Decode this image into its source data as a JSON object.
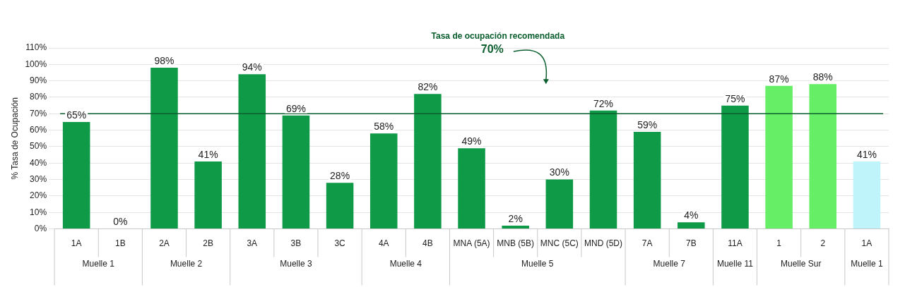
{
  "chart_data": {
    "type": "bar",
    "ylabel": "% Tasa de Ocupación",
    "categories": [
      "1A",
      "1B",
      "2A",
      "2B",
      "3A",
      "3B",
      "3C",
      "4A",
      "4B",
      "MNA (5A)",
      "MNB (5B)",
      "MNC (5C)",
      "MND (5D)",
      "7A",
      "7B",
      "11A",
      "1",
      "2",
      "1A"
    ],
    "values": [
      65,
      0,
      98,
      41,
      94,
      69,
      28,
      58,
      82,
      49,
      2,
      30,
      72,
      59,
      4,
      75,
      87,
      88,
      41
    ],
    "value_labels": [
      "65%",
      "0%",
      "98%",
      "41%",
      "94%",
      "69%",
      "28%",
      "58%",
      "82%",
      "49%",
      "2%",
      "30%",
      "72%",
      "59%",
      "4%",
      "75%",
      "87%",
      "88%",
      "41%"
    ],
    "colors": [
      "#0f9a48",
      "#0f9a48",
      "#0f9a48",
      "#0f9a48",
      "#0f9a48",
      "#0f9a48",
      "#0f9a48",
      "#0f9a48",
      "#0f9a48",
      "#0f9a48",
      "#0f9a48",
      "#0f9a48",
      "#0f9a48",
      "#0f9a48",
      "#0f9a48",
      "#0f9a48",
      "#66ee66",
      "#66ee66",
      "#bff5fa"
    ],
    "ylim": [
      0,
      110
    ],
    "yticks": [
      {
        "value": 0,
        "label": "0%"
      },
      {
        "value": 10,
        "label": "10%"
      },
      {
        "value": 20,
        "label": "20%"
      },
      {
        "value": 30,
        "label": "30%"
      },
      {
        "value": 40,
        "label": "40%"
      },
      {
        "value": 50,
        "label": "50%"
      },
      {
        "value": 60,
        "label": "60%"
      },
      {
        "value": 70,
        "label": "70%"
      },
      {
        "value": 80,
        "label": "80%"
      },
      {
        "value": 90,
        "label": "90%"
      },
      {
        "value": 100,
        "label": "100%"
      },
      {
        "value": 110,
        "label": "110%"
      }
    ],
    "grid": "y",
    "legend": false,
    "ref_lines": [
      {
        "axis": "y",
        "value": 70,
        "label": "Tasa de ocupación recomendada",
        "color": "#0b5e2e"
      }
    ],
    "annotations": [
      "70%",
      "Muelle 1",
      "Muelle 2",
      "Muelle 3",
      "Muelle 4",
      "Muelle 5",
      "Muelle 7",
      "Muelle 11",
      "Muelle Sur",
      "Muelle 1"
    ]
  }
}
